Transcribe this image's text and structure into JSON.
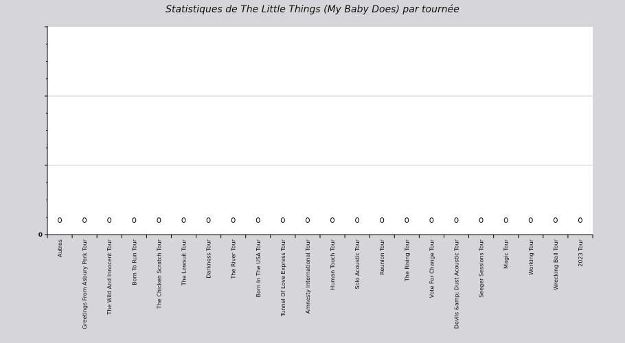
{
  "chart_data": {
    "type": "scatter",
    "title": "Statistiques de The Little Things (My Baby Does) par tournée",
    "xlabel": "",
    "ylabel": "",
    "categories": [
      "Autres",
      "Greetings From Asbury Park Tour",
      "The Wild And Innocent Tour",
      "Born To Run Tour",
      "The Chicken Scratch Tour",
      "The Lawsuit Tour",
      "Darkness Tour",
      "The River Tour",
      "Born In The USA Tour",
      "Tunnel Of Love Express Tour",
      "Amnesty International Tour",
      "Human Touch Tour",
      "Solo Acoustic Tour",
      "Reunion Tour",
      "The Rising Tour",
      "Vote For Change Tour",
      "Devils &amp; Dust Acoustic Tour",
      "Seeger Sessions Tour",
      "Magic Tour",
      "Working Tour",
      "Wrecking Ball Tour",
      "2023 Tour"
    ],
    "values": [
      0,
      0,
      0,
      0,
      0,
      0,
      0,
      0,
      0,
      0,
      0,
      0,
      0,
      0,
      0,
      0,
      0,
      0,
      0,
      0,
      0,
      0
    ],
    "ylim": [
      0,
      3
    ],
    "ytick_labels": [
      "0"
    ],
    "grid": true,
    "colors": {
      "plot_bg": "#ffffff",
      "page_bg": "#d6d5da",
      "grid": "#cfcfcf",
      "axis": "#000000",
      "marker_stroke": "#000000",
      "marker_fill": "#ffffff"
    }
  }
}
